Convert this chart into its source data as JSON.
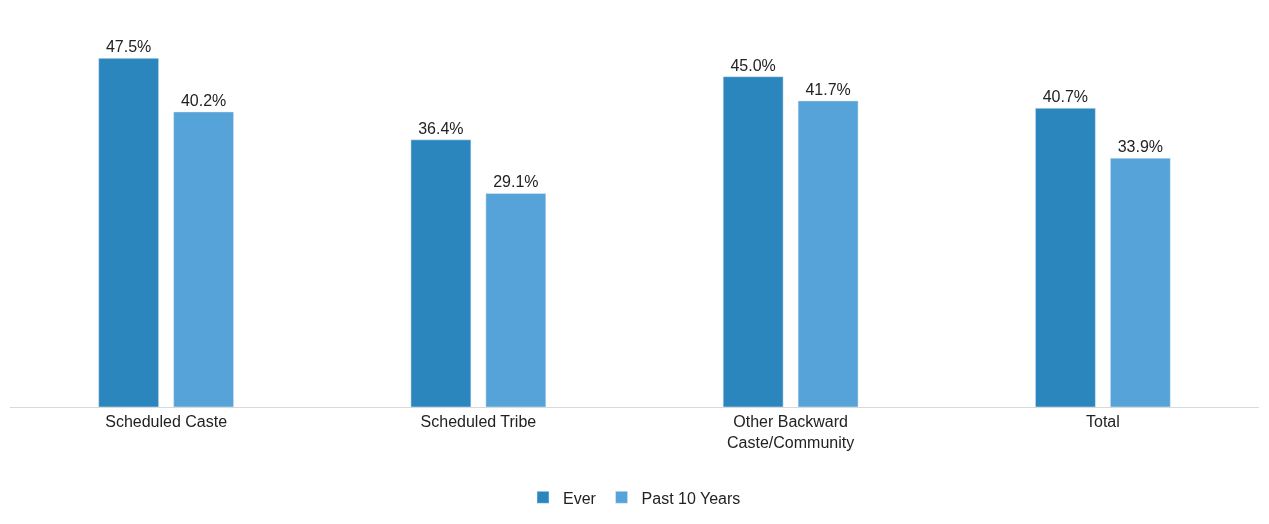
{
  "chart_data": {
    "type": "bar",
    "categories": [
      "Scheduled Caste",
      "Scheduled Tribe",
      "Other Backward\nCaste/Community",
      "Total"
    ],
    "series": [
      {
        "name": "Ever",
        "color": "#2b86be",
        "values": [
          47.5,
          36.4,
          45.0,
          40.7
        ],
        "value_labels": [
          "47.5%",
          "36.4%",
          "45.0%",
          "40.7%"
        ]
      },
      {
        "name": "Past 10 Years",
        "color": "#56a3d9",
        "values": [
          40.2,
          29.1,
          41.7,
          33.9
        ],
        "value_labels": [
          "40.2%",
          "29.1%",
          "41.7%",
          "33.9%"
        ]
      }
    ],
    "legend": "bottom"
  }
}
